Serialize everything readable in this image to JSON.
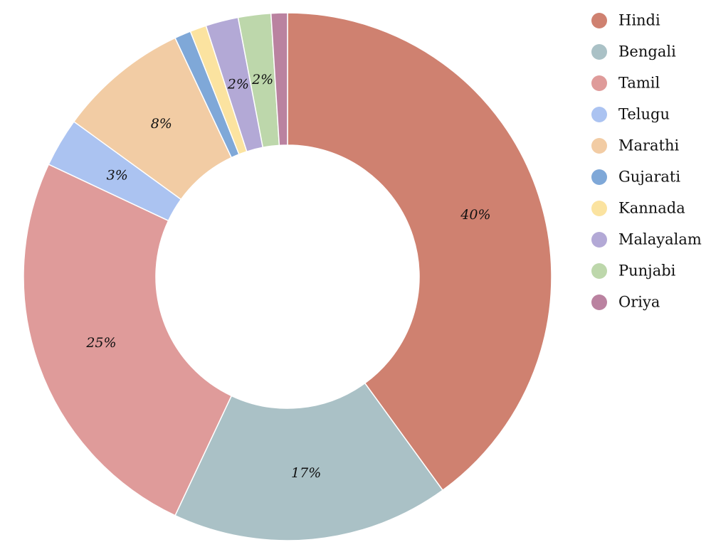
{
  "chart_data": {
    "type": "pie",
    "donut": true,
    "legend_position": "top-right",
    "categories": [
      "Hindi",
      "Bengali",
      "Tamil",
      "Telugu",
      "Marathi",
      "Gujarati",
      "Kannada",
      "Malayalam",
      "Punjabi",
      "Oriya"
    ],
    "values": [
      40,
      17,
      25,
      3,
      8,
      1,
      1,
      2,
      2,
      1
    ],
    "labels": [
      "40%",
      "17%",
      "25%",
      "3%",
      "8%",
      "",
      "",
      "2%",
      "2%",
      ""
    ],
    "colors": [
      "#cf8170",
      "#aac1c6",
      "#df9b9a",
      "#abc3f1",
      "#f2cca4",
      "#7fa8d8",
      "#fbe3a0",
      "#b3a9d6",
      "#bdd7ab",
      "#ba82a0"
    ]
  }
}
